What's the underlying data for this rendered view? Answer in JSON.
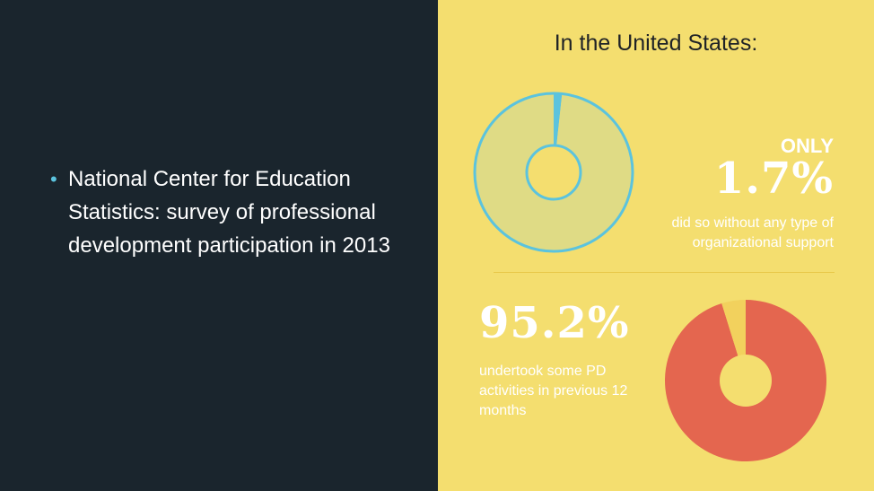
{
  "left": {
    "bullet": "National Center for Education Statistics: survey of professional development participation in 2013"
  },
  "right": {
    "heading": "In the United States:",
    "stat1": {
      "label": "ONLY",
      "value": "1.7%",
      "description": "did so without any type of organizational support"
    },
    "stat2": {
      "value": "95.2%",
      "description": "undertook some PD activities in previous 12 months"
    }
  },
  "colors": {
    "left_bg": "#1a252d",
    "right_bg": "#f4de6f",
    "bullet_dot": "#5bc3de",
    "donut1_fill": "#dfdb85",
    "donut1_slice": "#5bc3de",
    "donut2_fill": "#e4664f",
    "donut2_slice": "#f2d15d"
  },
  "chart_data": [
    {
      "type": "pie",
      "title": "",
      "slices": [
        {
          "label": "without organizational support",
          "value": 1.7,
          "color": "#5bc3de"
        },
        {
          "label": "",
          "value": 98.3,
          "color": "#dfdb85"
        }
      ]
    },
    {
      "type": "pie",
      "title": "",
      "slices": [
        {
          "label": "undertook some PD activities",
          "value": 95.2,
          "color": "#e4664f"
        },
        {
          "label": "",
          "value": 4.8,
          "color": "#f2d15d"
        }
      ]
    }
  ]
}
